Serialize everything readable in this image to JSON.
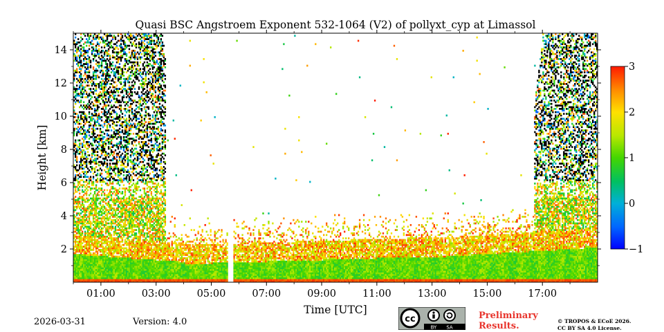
{
  "chart_data": {
    "type": "heatmap",
    "title": "Quasi BSC Angstroem Exponent 532-1064 (V2) of pollyxt_cyp at Limassol",
    "xlabel": "Time [UTC]",
    "ylabel": "Height [km]",
    "xlim": [
      0,
      19
    ],
    "ylim": [
      0,
      15
    ],
    "x_ticks": [
      {
        "value": 1,
        "label": "01:00"
      },
      {
        "value": 3,
        "label": "03:00"
      },
      {
        "value": 5,
        "label": "05:00"
      },
      {
        "value": 7,
        "label": "07:00"
      },
      {
        "value": 9,
        "label": "09:00"
      },
      {
        "value": 11,
        "label": "11:00"
      },
      {
        "value": 13,
        "label": "13:00"
      },
      {
        "value": 15,
        "label": "15:00"
      },
      {
        "value": 17,
        "label": "17:00"
      }
    ],
    "y_ticks": [
      {
        "value": 2,
        "label": "2"
      },
      {
        "value": 4,
        "label": "4"
      },
      {
        "value": 6,
        "label": "6"
      },
      {
        "value": 8,
        "label": "8"
      },
      {
        "value": 10,
        "label": "10"
      },
      {
        "value": 12,
        "label": "12"
      },
      {
        "value": 14,
        "label": "14"
      }
    ],
    "colorbar": {
      "min": -1,
      "max": 3,
      "ticks": [
        {
          "value": 3,
          "label": "3"
        },
        {
          "value": 2,
          "label": "2"
        },
        {
          "value": 1,
          "label": "1"
        },
        {
          "value": 0,
          "label": "0"
        },
        {
          "value": -1,
          "label": "−1"
        }
      ],
      "colormap": "jet"
    },
    "data_gap": {
      "start": 5.55,
      "end": 5.75
    },
    "field_description_regions": [
      {
        "name": "night-noise-early",
        "x_range": [
          0,
          3.3
        ],
        "y_range": [
          1,
          15
        ],
        "value_range": [
          -1,
          3
        ]
      },
      {
        "name": "night-noise-late",
        "x_range": [
          16.7,
          19
        ],
        "y_range": [
          1,
          15
        ],
        "value_range": [
          -1,
          3
        ]
      },
      {
        "name": "boundary-layer",
        "x_range": [
          0,
          19
        ],
        "y_range": [
          0,
          2.5
        ],
        "value_range": [
          0.6,
          1.5
        ]
      }
    ]
  },
  "footer": {
    "date": "2026-03-31",
    "version": "Version: 4.0",
    "preliminary_line1": "Preliminary",
    "preliminary_line2": "Results.",
    "copyright_line1": "© TROPOS & ECoE 2026.",
    "copyright_line2": "CC BY SA 4.0 License.",
    "cc_by": "BY",
    "cc_sa": "SA"
  }
}
